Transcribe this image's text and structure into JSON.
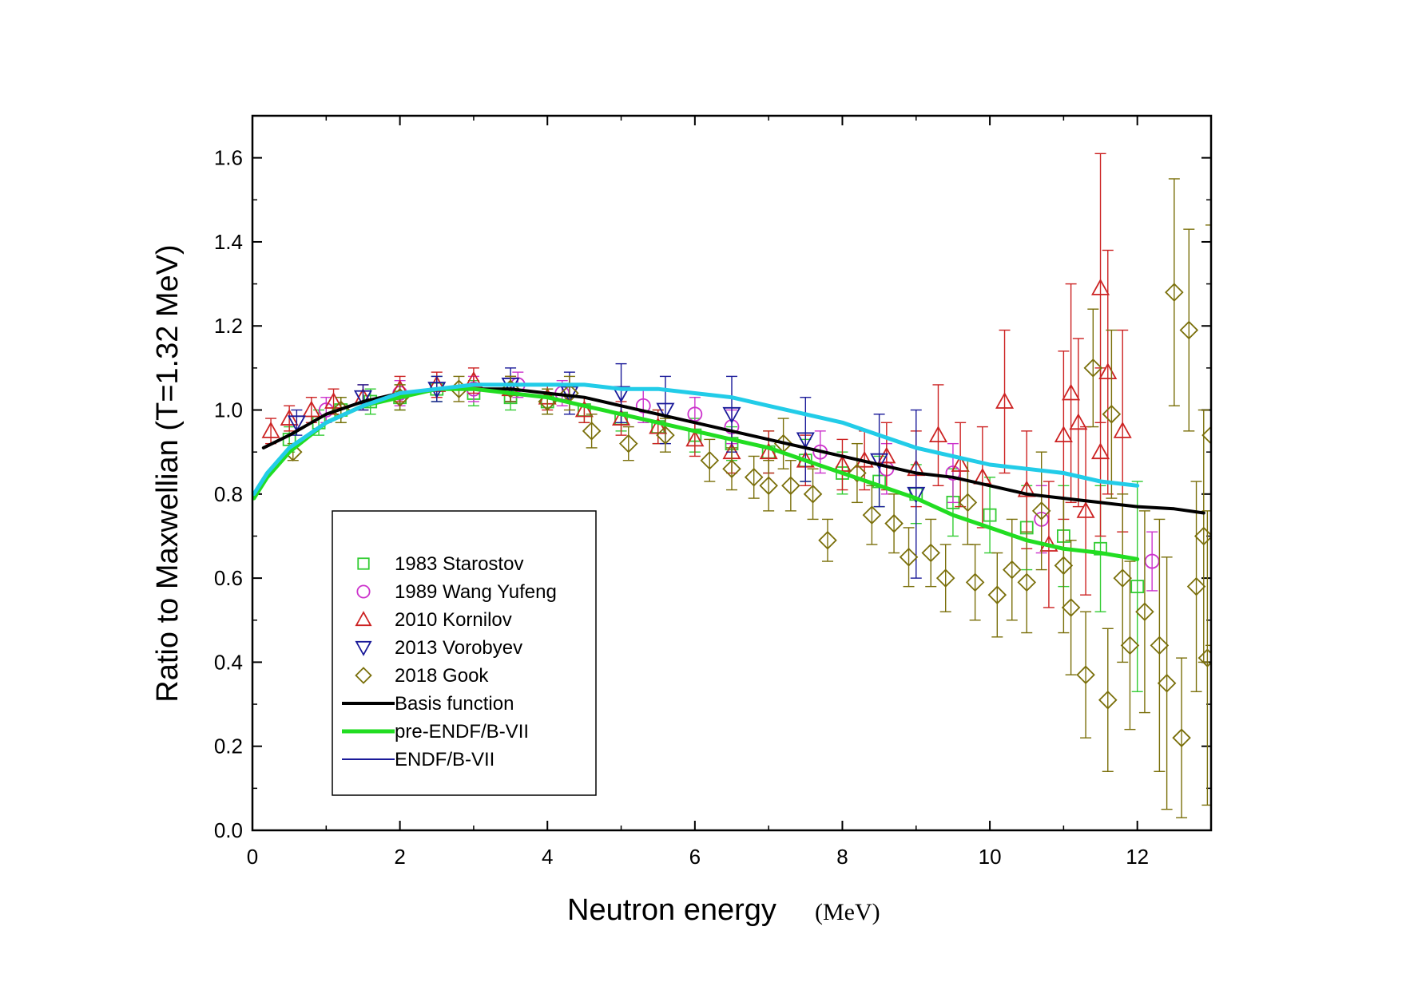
{
  "chart_data": {
    "type": "scatter",
    "xlabel": "Neutron energy",
    "xunit": "(MeV)",
    "ylabel": "Ratio to Maxwellian (T=1.32 MeV)",
    "xlim": [
      0,
      13
    ],
    "ylim": [
      0,
      1.7
    ],
    "x_ticks": [
      0,
      2,
      4,
      6,
      8,
      10,
      12
    ],
    "x_tick_labels": [
      "0",
      "2",
      "4",
      "6",
      "8",
      "10",
      "12"
    ],
    "y_ticks": [
      0,
      0.2,
      0.4,
      0.6,
      0.8,
      1.0,
      1.2,
      1.4,
      1.6
    ],
    "y_tick_labels": [
      "0.0",
      "0.2",
      "0.4",
      "0.6",
      "0.8",
      "1.0",
      "1.2",
      "1.4",
      "1.6"
    ],
    "legend_position": "bottom-left",
    "series": [
      {
        "name": "1983 Starostov",
        "kind": "scatter",
        "marker": "square",
        "color": "#33cc33",
        "points": [
          [
            0.5,
            0.93,
            0.03
          ],
          [
            0.9,
            0.97,
            0.03
          ],
          [
            1.2,
            1.0,
            0.03
          ],
          [
            1.6,
            1.02,
            0.03
          ],
          [
            2.0,
            1.03,
            0.03
          ],
          [
            2.5,
            1.05,
            0.03
          ],
          [
            3.0,
            1.04,
            0.03
          ],
          [
            3.5,
            1.03,
            0.03
          ],
          [
            4.0,
            1.02,
            0.03
          ],
          [
            4.5,
            1.0,
            0.03
          ],
          [
            5.0,
            0.98,
            0.03
          ],
          [
            5.5,
            0.96,
            0.04
          ],
          [
            6.0,
            0.94,
            0.04
          ],
          [
            6.5,
            0.92,
            0.04
          ],
          [
            7.0,
            0.9,
            0.05
          ],
          [
            7.5,
            0.88,
            0.05
          ],
          [
            8.0,
            0.85,
            0.05
          ],
          [
            8.5,
            0.83,
            0.06
          ],
          [
            9.0,
            0.8,
            0.07
          ],
          [
            9.5,
            0.78,
            0.08
          ],
          [
            10.0,
            0.75,
            0.09
          ],
          [
            10.5,
            0.72,
            0.1
          ],
          [
            11.0,
            0.7,
            0.12
          ],
          [
            11.5,
            0.67,
            0.15
          ],
          [
            12.0,
            0.58,
            0.25
          ]
        ]
      },
      {
        "name": "1989 Wang Yufeng",
        "kind": "scatter",
        "marker": "circle",
        "color": "#cc33cc",
        "points": [
          [
            1.0,
            1.0,
            0.03
          ],
          [
            2.0,
            1.04,
            0.03
          ],
          [
            3.0,
            1.05,
            0.03
          ],
          [
            3.6,
            1.06,
            0.03
          ],
          [
            4.2,
            1.04,
            0.03
          ],
          [
            5.3,
            1.01,
            0.04
          ],
          [
            6.0,
            0.99,
            0.04
          ],
          [
            6.5,
            0.96,
            0.04
          ],
          [
            7.7,
            0.9,
            0.05
          ],
          [
            8.6,
            0.86,
            0.06
          ],
          [
            9.5,
            0.85,
            0.07
          ],
          [
            10.7,
            0.74,
            0.08
          ],
          [
            12.2,
            0.64,
            0.07
          ]
        ]
      },
      {
        "name": "2010 Kornilov",
        "kind": "scatter",
        "marker": "triangle-up",
        "color": "#cc2222",
        "points": [
          [
            0.25,
            0.95,
            0.03
          ],
          [
            0.5,
            0.98,
            0.03
          ],
          [
            0.8,
            1.0,
            0.03
          ],
          [
            1.1,
            1.02,
            0.03
          ],
          [
            1.5,
            1.03,
            0.03
          ],
          [
            2.0,
            1.05,
            0.03
          ],
          [
            2.5,
            1.06,
            0.03
          ],
          [
            3.0,
            1.07,
            0.03
          ],
          [
            3.5,
            1.05,
            0.03
          ],
          [
            4.0,
            1.03,
            0.03
          ],
          [
            4.5,
            1.0,
            0.03
          ],
          [
            5.0,
            0.98,
            0.04
          ],
          [
            5.5,
            0.96,
            0.04
          ],
          [
            6.0,
            0.93,
            0.04
          ],
          [
            6.5,
            0.9,
            0.05
          ],
          [
            7.0,
            0.9,
            0.05
          ],
          [
            7.5,
            0.88,
            0.06
          ],
          [
            8.0,
            0.87,
            0.06
          ],
          [
            8.3,
            0.88,
            0.07
          ],
          [
            8.6,
            0.89,
            0.08
          ],
          [
            9.0,
            0.86,
            0.09
          ],
          [
            9.3,
            0.94,
            0.12
          ],
          [
            9.6,
            0.87,
            0.1
          ],
          [
            9.9,
            0.84,
            0.12
          ],
          [
            10.2,
            1.02,
            0.17
          ],
          [
            10.5,
            0.81,
            0.14
          ],
          [
            10.8,
            0.68,
            0.15
          ],
          [
            11.0,
            0.94,
            0.2
          ],
          [
            11.1,
            1.04,
            0.26
          ],
          [
            11.2,
            0.97,
            0.2
          ],
          [
            11.3,
            0.76,
            0.2
          ],
          [
            11.5,
            1.29,
            0.32
          ],
          [
            11.5,
            0.9,
            0.2
          ],
          [
            11.6,
            1.09,
            0.29
          ],
          [
            11.8,
            0.95,
            0.24
          ]
        ]
      },
      {
        "name": "2013 Vorobyev",
        "kind": "scatter",
        "marker": "triangle-down",
        "color": "#1a1a99",
        "points": [
          [
            0.6,
            0.97,
            0.03
          ],
          [
            1.5,
            1.03,
            0.03
          ],
          [
            2.5,
            1.05,
            0.03
          ],
          [
            3.5,
            1.06,
            0.04
          ],
          [
            4.3,
            1.04,
            0.05
          ],
          [
            5.0,
            1.04,
            0.07
          ],
          [
            5.6,
            1.0,
            0.08
          ],
          [
            6.5,
            0.99,
            0.09
          ],
          [
            7.5,
            0.93,
            0.1
          ],
          [
            8.5,
            0.88,
            0.11
          ],
          [
            9.0,
            0.8,
            0.2
          ]
        ]
      },
      {
        "name": "2018 Gook",
        "kind": "scatter",
        "marker": "diamond",
        "color": "#7a6f0a",
        "points": [
          [
            0.55,
            0.9,
            0.02
          ],
          [
            1.2,
            1.0,
            0.03
          ],
          [
            2.0,
            1.03,
            0.03
          ],
          [
            2.8,
            1.05,
            0.03
          ],
          [
            3.5,
            1.05,
            0.03
          ],
          [
            4.0,
            1.02,
            0.03
          ],
          [
            4.3,
            1.04,
            0.04
          ],
          [
            4.6,
            0.95,
            0.04
          ],
          [
            5.1,
            0.92,
            0.04
          ],
          [
            5.6,
            0.94,
            0.04
          ],
          [
            6.2,
            0.88,
            0.05
          ],
          [
            6.5,
            0.86,
            0.05
          ],
          [
            6.8,
            0.84,
            0.05
          ],
          [
            7.0,
            0.82,
            0.06
          ],
          [
            7.2,
            0.92,
            0.06
          ],
          [
            7.3,
            0.82,
            0.06
          ],
          [
            7.6,
            0.8,
            0.06
          ],
          [
            7.8,
            0.69,
            0.05
          ],
          [
            8.2,
            0.85,
            0.07
          ],
          [
            8.4,
            0.75,
            0.07
          ],
          [
            8.7,
            0.73,
            0.07
          ],
          [
            8.9,
            0.65,
            0.07
          ],
          [
            9.2,
            0.66,
            0.08
          ],
          [
            9.4,
            0.6,
            0.08
          ],
          [
            9.7,
            0.78,
            0.1
          ],
          [
            9.8,
            0.59,
            0.09
          ],
          [
            10.1,
            0.56,
            0.1
          ],
          [
            10.3,
            0.62,
            0.12
          ],
          [
            10.5,
            0.59,
            0.12
          ],
          [
            10.7,
            0.76,
            0.14
          ],
          [
            11.0,
            0.63,
            0.16
          ],
          [
            11.1,
            0.53,
            0.16
          ],
          [
            11.3,
            0.37,
            0.15
          ],
          [
            11.4,
            1.1,
            0.14
          ],
          [
            11.6,
            0.31,
            0.17
          ],
          [
            11.65,
            0.99,
            0.2
          ],
          [
            11.8,
            0.6,
            0.2
          ],
          [
            11.9,
            0.44,
            0.2
          ],
          [
            12.1,
            0.52,
            0.24
          ],
          [
            12.3,
            0.44,
            0.3
          ],
          [
            12.4,
            0.35,
            0.3
          ],
          [
            12.5,
            1.28,
            0.27
          ],
          [
            12.6,
            0.22,
            0.19
          ],
          [
            12.7,
            1.19,
            0.24
          ],
          [
            12.8,
            0.58,
            0.25
          ],
          [
            12.9,
            0.7,
            0.3
          ],
          [
            12.95,
            0.41,
            0.35
          ],
          [
            13.0,
            0.94,
            0.5
          ]
        ]
      },
      {
        "name": "Basis function",
        "kind": "line",
        "color": "#000000",
        "width": 4,
        "points": [
          [
            0.15,
            0.91
          ],
          [
            0.5,
            0.94
          ],
          [
            1.0,
            0.99
          ],
          [
            1.5,
            1.02
          ],
          [
            2.0,
            1.04
          ],
          [
            2.5,
            1.05
          ],
          [
            3.0,
            1.05
          ],
          [
            3.5,
            1.05
          ],
          [
            4.0,
            1.04
          ],
          [
            4.5,
            1.03
          ],
          [
            5.0,
            1.01
          ],
          [
            5.5,
            0.99
          ],
          [
            6.0,
            0.97
          ],
          [
            6.5,
            0.95
          ],
          [
            7.0,
            0.93
          ],
          [
            7.5,
            0.91
          ],
          [
            8.0,
            0.89
          ],
          [
            8.5,
            0.87
          ],
          [
            9.0,
            0.85
          ],
          [
            9.5,
            0.84
          ],
          [
            10.0,
            0.82
          ],
          [
            10.5,
            0.8
          ],
          [
            11.0,
            0.79
          ],
          [
            11.5,
            0.78
          ],
          [
            12.0,
            0.77
          ],
          [
            12.5,
            0.765
          ],
          [
            12.9,
            0.755
          ]
        ]
      },
      {
        "name": "pre-ENDF/B-VII",
        "kind": "line",
        "color": "#22dd22",
        "width": 5,
        "points": [
          [
            0.02,
            0.79
          ],
          [
            0.2,
            0.84
          ],
          [
            0.5,
            0.9
          ],
          [
            1.0,
            0.97
          ],
          [
            1.5,
            1.01
          ],
          [
            2.0,
            1.03
          ],
          [
            2.5,
            1.05
          ],
          [
            3.0,
            1.05
          ],
          [
            3.5,
            1.04
          ],
          [
            4.0,
            1.03
          ],
          [
            4.5,
            1.01
          ],
          [
            5.0,
            0.99
          ],
          [
            5.5,
            0.97
          ],
          [
            6.0,
            0.95
          ],
          [
            6.5,
            0.93
          ],
          [
            7.0,
            0.91
          ],
          [
            7.5,
            0.88
          ],
          [
            8.0,
            0.85
          ],
          [
            8.5,
            0.82
          ],
          [
            9.0,
            0.79
          ],
          [
            9.5,
            0.75
          ],
          [
            10.0,
            0.72
          ],
          [
            10.5,
            0.69
          ],
          [
            11.0,
            0.67
          ],
          [
            11.5,
            0.66
          ],
          [
            12.0,
            0.645
          ]
        ]
      },
      {
        "name": "ENDF/B-VII",
        "kind": "line",
        "color": "#22cce8",
        "width": 5,
        "legend_color": "#1a1a99",
        "legend_width": 2,
        "points": [
          [
            0.02,
            0.8
          ],
          [
            0.2,
            0.85
          ],
          [
            0.5,
            0.91
          ],
          [
            1.0,
            0.97
          ],
          [
            1.5,
            1.01
          ],
          [
            2.0,
            1.04
          ],
          [
            2.5,
            1.05
          ],
          [
            3.0,
            1.06
          ],
          [
            3.5,
            1.06
          ],
          [
            4.0,
            1.06
          ],
          [
            4.5,
            1.06
          ],
          [
            5.0,
            1.05
          ],
          [
            5.5,
            1.05
          ],
          [
            6.0,
            1.04
          ],
          [
            6.5,
            1.03
          ],
          [
            7.0,
            1.01
          ],
          [
            7.5,
            0.99
          ],
          [
            8.0,
            0.97
          ],
          [
            8.5,
            0.94
          ],
          [
            9.0,
            0.91
          ],
          [
            9.5,
            0.89
          ],
          [
            10.0,
            0.87
          ],
          [
            10.5,
            0.86
          ],
          [
            11.0,
            0.85
          ],
          [
            11.5,
            0.83
          ],
          [
            12.0,
            0.82
          ]
        ]
      }
    ]
  }
}
